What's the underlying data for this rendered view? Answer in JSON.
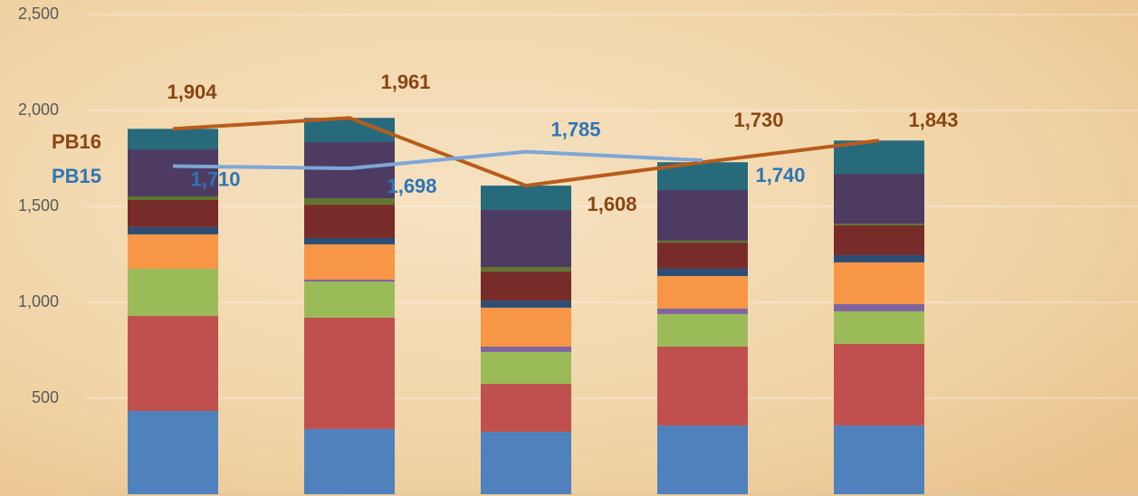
{
  "chart_data": {
    "type": "bar",
    "stacked": true,
    "categories": [
      null,
      null,
      null,
      null,
      null
    ],
    "ylim": [
      0,
      2500
    ],
    "yticks": [
      {
        "value": 500,
        "label": "500"
      },
      {
        "value": 1000,
        "label": "1,000"
      },
      {
        "value": 1500,
        "label": "1,500"
      },
      {
        "value": 2000,
        "label": "2,000"
      },
      {
        "value": 2500,
        "label": "2,500"
      }
    ],
    "grid": true,
    "series": [
      {
        "color": "#4f81bd",
        "values": [
          434,
          340,
          325,
          358,
          358
        ]
      },
      {
        "color": "#c0504d",
        "values": [
          495,
          580,
          250,
          411,
          425
        ]
      },
      {
        "color": "#9bbb59",
        "values": [
          246,
          188,
          166,
          170,
          170
        ]
      },
      {
        "color": "#8064a2",
        "values": [
          0,
          10,
          28,
          28,
          38
        ]
      },
      {
        "color": "#f79646",
        "values": [
          179,
          184,
          203,
          170,
          217
        ]
      },
      {
        "color": "#2c4d75",
        "values": [
          38,
          33,
          37,
          38,
          37
        ]
      },
      {
        "color": "#772c2a",
        "values": [
          141,
          174,
          151,
          136,
          156
        ]
      },
      {
        "color": "#5f7530",
        "values": [
          19,
          33,
          24,
          10,
          9
        ]
      },
      {
        "color": "#4d3b62",
        "values": [
          245,
          293,
          297,
          264,
          260
        ]
      },
      {
        "color": "#276a7c",
        "values": [
          107,
          126,
          127,
          145,
          173
        ]
      },
      {
        "type": "line",
        "name": "PB16",
        "color": "#b85c1a",
        "label_color": "#8b4513",
        "values": [
          1904,
          1961,
          1608,
          1730,
          1843
        ],
        "value_labels": [
          "1,904",
          "1,961",
          "1,608",
          "1,730",
          "1,843"
        ]
      },
      {
        "type": "line",
        "name": "PB15",
        "color": "#7ea6d8",
        "label_color": "#2e75b6",
        "values": [
          1710,
          1698,
          1785,
          1740,
          null
        ],
        "value_labels": [
          "1,710",
          "1,698",
          "1,785",
          "1,740",
          null
        ]
      }
    ]
  }
}
